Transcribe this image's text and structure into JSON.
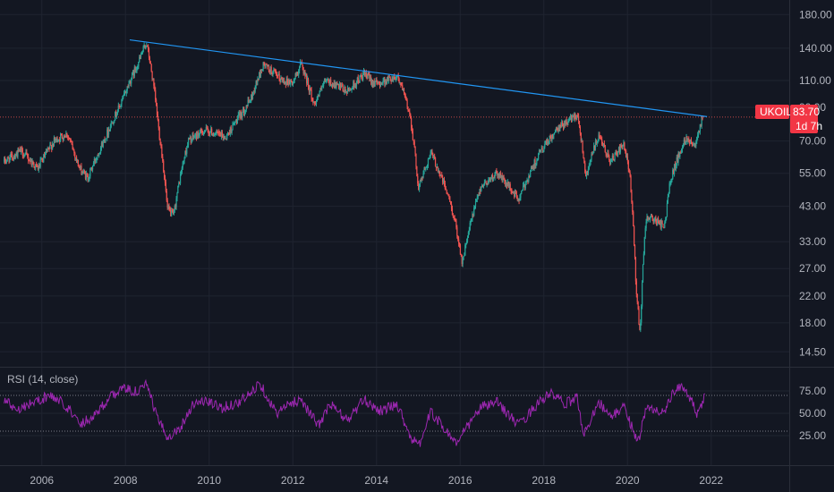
{
  "chart_data": {
    "type": "candlestick",
    "symbol": "UKOIL",
    "last_price": "83.70",
    "countdown": "1d 7h",
    "price_scale": "log",
    "price_axis_ticks": [
      "180.00",
      "140.00",
      "110.00",
      "90.00",
      "70.00",
      "55.00",
      "43.00",
      "33.00",
      "27.00",
      "22.00",
      "18.00",
      "14.50"
    ],
    "x_axis_ticks": [
      "2006",
      "2008",
      "2010",
      "2012",
      "2014",
      "2016",
      "2018",
      "2020",
      "2022"
    ],
    "ylim": [
      12.5,
      200
    ],
    "trendline": {
      "from": {
        "date": 2008.1,
        "price": 149
      },
      "to": {
        "date": 2021.9,
        "price": 84
      }
    },
    "price_anchors": [
      [
        2005.1,
        60
      ],
      [
        2005.5,
        65
      ],
      [
        2005.9,
        57
      ],
      [
        2006.3,
        70
      ],
      [
        2006.6,
        74
      ],
      [
        2006.9,
        57
      ],
      [
        2007.1,
        53
      ],
      [
        2007.5,
        71
      ],
      [
        2007.9,
        93
      ],
      [
        2008.3,
        125
      ],
      [
        2008.5,
        146
      ],
      [
        2008.8,
        75
      ],
      [
        2009.0,
        42
      ],
      [
        2009.15,
        40
      ],
      [
        2009.5,
        70
      ],
      [
        2009.9,
        76
      ],
      [
        2010.4,
        72
      ],
      [
        2010.8,
        87
      ],
      [
        2011.0,
        96
      ],
      [
        2011.3,
        124
      ],
      [
        2011.7,
        111
      ],
      [
        2012.0,
        108
      ],
      [
        2012.2,
        125
      ],
      [
        2012.5,
        92
      ],
      [
        2012.8,
        110
      ],
      [
        2013.3,
        101
      ],
      [
        2013.7,
        115
      ],
      [
        2014.0,
        107
      ],
      [
        2014.5,
        114
      ],
      [
        2014.8,
        85
      ],
      [
        2015.0,
        49
      ],
      [
        2015.3,
        64
      ],
      [
        2015.7,
        47
      ],
      [
        2015.9,
        37
      ],
      [
        2016.05,
        28
      ],
      [
        2016.5,
        50
      ],
      [
        2016.9,
        55
      ],
      [
        2017.4,
        45
      ],
      [
        2017.9,
        64
      ],
      [
        2018.4,
        78
      ],
      [
        2018.8,
        86
      ],
      [
        2019.0,
        54
      ],
      [
        2019.3,
        72
      ],
      [
        2019.6,
        60
      ],
      [
        2019.9,
        68
      ],
      [
        2020.05,
        55
      ],
      [
        2020.2,
        24
      ],
      [
        2020.3,
        16
      ],
      [
        2020.45,
        40
      ],
      [
        2020.9,
        37
      ],
      [
        2021.0,
        51
      ],
      [
        2021.4,
        72
      ],
      [
        2021.6,
        68
      ],
      [
        2021.8,
        84
      ]
    ],
    "rsi": {
      "title": "RSI (14, close)",
      "axis_ticks": [
        "75.00",
        "50.00",
        "25.00"
      ],
      "upper_band": 70,
      "lower_band": 30,
      "anchors": [
        [
          2005.1,
          65
        ],
        [
          2005.4,
          55
        ],
        [
          2005.8,
          62
        ],
        [
          2006.2,
          70
        ],
        [
          2006.6,
          58
        ],
        [
          2006.9,
          38
        ],
        [
          2007.2,
          46
        ],
        [
          2007.6,
          66
        ],
        [
          2007.9,
          78
        ],
        [
          2008.3,
          74
        ],
        [
          2008.5,
          82
        ],
        [
          2008.8,
          40
        ],
        [
          2009.0,
          24
        ],
        [
          2009.3,
          33
        ],
        [
          2009.6,
          60
        ],
        [
          2009.9,
          64
        ],
        [
          2010.3,
          56
        ],
        [
          2010.7,
          62
        ],
        [
          2011.0,
          72
        ],
        [
          2011.2,
          85
        ],
        [
          2011.6,
          50
        ],
        [
          2012.0,
          62
        ],
        [
          2012.2,
          66
        ],
        [
          2012.6,
          36
        ],
        [
          2012.9,
          60
        ],
        [
          2013.3,
          42
        ],
        [
          2013.7,
          65
        ],
        [
          2014.1,
          53
        ],
        [
          2014.5,
          60
        ],
        [
          2014.8,
          25
        ],
        [
          2015.0,
          12
        ],
        [
          2015.3,
          52
        ],
        [
          2015.7,
          28
        ],
        [
          2015.95,
          16
        ],
        [
          2016.1,
          30
        ],
        [
          2016.5,
          57
        ],
        [
          2016.9,
          62
        ],
        [
          2017.4,
          36
        ],
        [
          2017.9,
          64
        ],
        [
          2018.2,
          72
        ],
        [
          2018.5,
          60
        ],
        [
          2018.8,
          68
        ],
        [
          2018.95,
          24
        ],
        [
          2019.3,
          64
        ],
        [
          2019.6,
          45
        ],
        [
          2019.9,
          58
        ],
        [
          2020.05,
          42
        ],
        [
          2020.25,
          18
        ],
        [
          2020.45,
          55
        ],
        [
          2020.9,
          52
        ],
        [
          2021.1,
          74
        ],
        [
          2021.35,
          80
        ],
        [
          2021.55,
          62
        ],
        [
          2021.65,
          45
        ],
        [
          2021.85,
          70
        ]
      ]
    }
  },
  "colors": {
    "background": "#131722",
    "grid": "#1f2430",
    "up": "#26a69a",
    "down": "#ef5350",
    "trendline": "#2196f3",
    "rsi_line": "#9c27b0",
    "rsi_band": "#787b86",
    "price_line": "#ef5350",
    "badge": "#f23645",
    "axis_text": "#b2b5be"
  }
}
